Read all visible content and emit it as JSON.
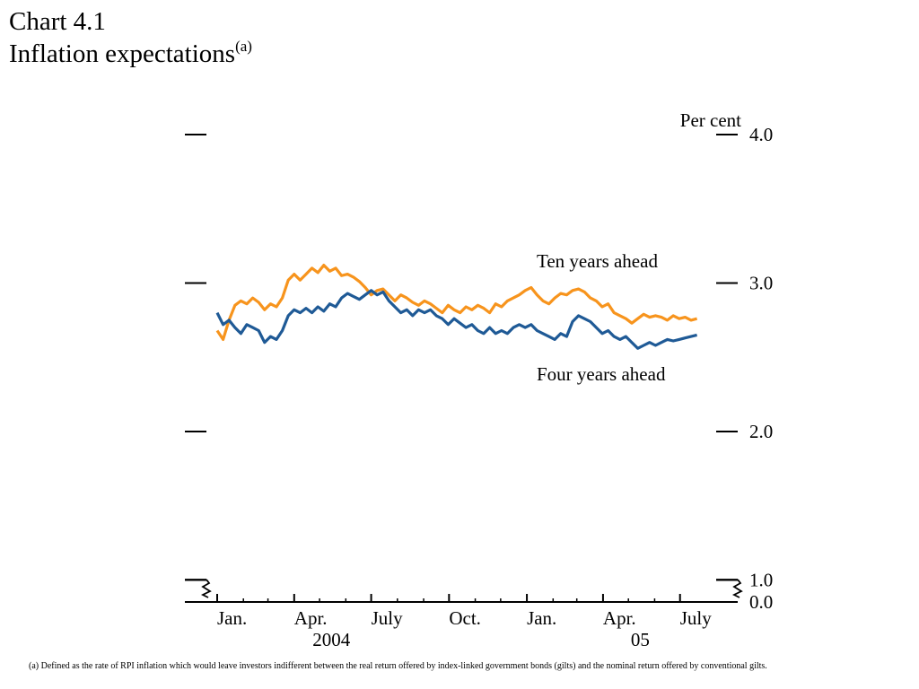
{
  "header": {
    "chart_number": "Chart 4.1",
    "title": "Inflation expectations",
    "title_footnote_mark": "(a)"
  },
  "footnote": {
    "text": "(a)  Defined as the rate of RPI inflation which would leave investors indifferent between the real return offered by index-linked government bonds (gilts) and the nominal return offered by conventional gilts."
  },
  "chart_data": {
    "type": "line",
    "title": "Inflation expectations",
    "ylabel": "Per cent",
    "y_axis": {
      "side": "right",
      "ticks": [
        4.0,
        3.0,
        2.0,
        1.0,
        0.0
      ],
      "tick_labels": [
        "4.0",
        "3.0",
        "2.0",
        "1.0",
        "0.0"
      ],
      "ylim": [
        0.0,
        4.0
      ],
      "broken_between": [
        0.0,
        1.0
      ]
    },
    "x_axis": {
      "range": [
        "2004-01-01",
        "2005-07-31"
      ],
      "ticks": [
        "2004-01-01",
        "2004-04-01",
        "2004-07-01",
        "2004-10-01",
        "2005-01-01",
        "2005-04-01",
        "2005-07-01"
      ],
      "tick_labels": [
        "Jan.",
        "Apr.",
        "July",
        "Oct.",
        "Jan.",
        "Apr.",
        "July"
      ],
      "year_labels": [
        {
          "label": "2004",
          "date": "2004-05-15"
        },
        {
          "label": "05",
          "date": "2005-05-15"
        }
      ]
    },
    "grid": false,
    "series": [
      {
        "name": "Ten years ahead",
        "label_near": "2005-03-15",
        "color": "#F7941D",
        "points": [
          [
            "2004-01-01",
            2.68
          ],
          [
            "2004-01-08",
            2.62
          ],
          [
            "2004-01-15",
            2.75
          ],
          [
            "2004-01-22",
            2.85
          ],
          [
            "2004-01-29",
            2.88
          ],
          [
            "2004-02-05",
            2.86
          ],
          [
            "2004-02-12",
            2.9
          ],
          [
            "2004-02-19",
            2.87
          ],
          [
            "2004-02-26",
            2.82
          ],
          [
            "2004-03-04",
            2.86
          ],
          [
            "2004-03-11",
            2.84
          ],
          [
            "2004-03-18",
            2.9
          ],
          [
            "2004-03-25",
            3.02
          ],
          [
            "2004-04-01",
            3.06
          ],
          [
            "2004-04-08",
            3.02
          ],
          [
            "2004-04-15",
            3.06
          ],
          [
            "2004-04-22",
            3.1
          ],
          [
            "2004-04-29",
            3.07
          ],
          [
            "2004-05-06",
            3.12
          ],
          [
            "2004-05-13",
            3.08
          ],
          [
            "2004-05-20",
            3.1
          ],
          [
            "2004-05-27",
            3.05
          ],
          [
            "2004-06-03",
            3.06
          ],
          [
            "2004-06-10",
            3.04
          ],
          [
            "2004-06-17",
            3.01
          ],
          [
            "2004-06-24",
            2.97
          ],
          [
            "2004-07-01",
            2.92
          ],
          [
            "2004-07-08",
            2.95
          ],
          [
            "2004-07-15",
            2.96
          ],
          [
            "2004-07-22",
            2.92
          ],
          [
            "2004-07-29",
            2.88
          ],
          [
            "2004-08-05",
            2.92
          ],
          [
            "2004-08-12",
            2.9
          ],
          [
            "2004-08-19",
            2.87
          ],
          [
            "2004-08-26",
            2.85
          ],
          [
            "2004-09-02",
            2.88
          ],
          [
            "2004-09-09",
            2.86
          ],
          [
            "2004-09-16",
            2.83
          ],
          [
            "2004-09-23",
            2.8
          ],
          [
            "2004-09-30",
            2.85
          ],
          [
            "2004-10-07",
            2.82
          ],
          [
            "2004-10-14",
            2.8
          ],
          [
            "2004-10-21",
            2.84
          ],
          [
            "2004-10-28",
            2.82
          ],
          [
            "2004-11-04",
            2.85
          ],
          [
            "2004-11-11",
            2.83
          ],
          [
            "2004-11-18",
            2.8
          ],
          [
            "2004-11-25",
            2.86
          ],
          [
            "2004-12-02",
            2.84
          ],
          [
            "2004-12-09",
            2.88
          ],
          [
            "2004-12-16",
            2.9
          ],
          [
            "2004-12-23",
            2.92
          ],
          [
            "2004-12-30",
            2.95
          ],
          [
            "2005-01-06",
            2.97
          ],
          [
            "2005-01-13",
            2.92
          ],
          [
            "2005-01-20",
            2.88
          ],
          [
            "2005-01-27",
            2.86
          ],
          [
            "2005-02-03",
            2.9
          ],
          [
            "2005-02-10",
            2.93
          ],
          [
            "2005-02-17",
            2.92
          ],
          [
            "2005-02-24",
            2.95
          ],
          [
            "2005-03-03",
            2.96
          ],
          [
            "2005-03-10",
            2.94
          ],
          [
            "2005-03-17",
            2.9
          ],
          [
            "2005-03-24",
            2.88
          ],
          [
            "2005-03-31",
            2.84
          ],
          [
            "2005-04-07",
            2.86
          ],
          [
            "2005-04-14",
            2.8
          ],
          [
            "2005-04-21",
            2.78
          ],
          [
            "2005-04-28",
            2.76
          ],
          [
            "2005-05-05",
            2.73
          ],
          [
            "2005-05-12",
            2.76
          ],
          [
            "2005-05-19",
            2.79
          ],
          [
            "2005-05-26",
            2.77
          ],
          [
            "2005-06-02",
            2.78
          ],
          [
            "2005-06-09",
            2.77
          ],
          [
            "2005-06-16",
            2.75
          ],
          [
            "2005-06-23",
            2.78
          ],
          [
            "2005-06-30",
            2.76
          ],
          [
            "2005-07-07",
            2.77
          ],
          [
            "2005-07-14",
            2.75
          ],
          [
            "2005-07-21",
            2.76
          ]
        ]
      },
      {
        "name": "Four years ahead",
        "label_near": "2005-03-15",
        "color": "#1F5A96",
        "points": [
          [
            "2004-01-01",
            2.8
          ],
          [
            "2004-01-08",
            2.72
          ],
          [
            "2004-01-15",
            2.75
          ],
          [
            "2004-01-22",
            2.7
          ],
          [
            "2004-01-29",
            2.66
          ],
          [
            "2004-02-05",
            2.72
          ],
          [
            "2004-02-12",
            2.7
          ],
          [
            "2004-02-19",
            2.68
          ],
          [
            "2004-02-26",
            2.6
          ],
          [
            "2004-03-04",
            2.64
          ],
          [
            "2004-03-11",
            2.62
          ],
          [
            "2004-03-18",
            2.68
          ],
          [
            "2004-03-25",
            2.78
          ],
          [
            "2004-04-01",
            2.82
          ],
          [
            "2004-04-08",
            2.8
          ],
          [
            "2004-04-15",
            2.83
          ],
          [
            "2004-04-22",
            2.8
          ],
          [
            "2004-04-29",
            2.84
          ],
          [
            "2004-05-06",
            2.81
          ],
          [
            "2004-05-13",
            2.86
          ],
          [
            "2004-05-20",
            2.84
          ],
          [
            "2004-05-27",
            2.9
          ],
          [
            "2004-06-03",
            2.93
          ],
          [
            "2004-06-10",
            2.91
          ],
          [
            "2004-06-17",
            2.89
          ],
          [
            "2004-06-24",
            2.92
          ],
          [
            "2004-07-01",
            2.95
          ],
          [
            "2004-07-08",
            2.92
          ],
          [
            "2004-07-15",
            2.94
          ],
          [
            "2004-07-22",
            2.88
          ],
          [
            "2004-07-29",
            2.84
          ],
          [
            "2004-08-05",
            2.8
          ],
          [
            "2004-08-12",
            2.82
          ],
          [
            "2004-08-19",
            2.78
          ],
          [
            "2004-08-26",
            2.82
          ],
          [
            "2004-09-02",
            2.8
          ],
          [
            "2004-09-09",
            2.82
          ],
          [
            "2004-09-16",
            2.78
          ],
          [
            "2004-09-23",
            2.76
          ],
          [
            "2004-09-30",
            2.72
          ],
          [
            "2004-10-07",
            2.76
          ],
          [
            "2004-10-14",
            2.73
          ],
          [
            "2004-10-21",
            2.7
          ],
          [
            "2004-10-28",
            2.72
          ],
          [
            "2004-11-04",
            2.68
          ],
          [
            "2004-11-11",
            2.66
          ],
          [
            "2004-11-18",
            2.7
          ],
          [
            "2004-11-25",
            2.66
          ],
          [
            "2004-12-02",
            2.68
          ],
          [
            "2004-12-09",
            2.66
          ],
          [
            "2004-12-16",
            2.7
          ],
          [
            "2004-12-23",
            2.72
          ],
          [
            "2004-12-30",
            2.7
          ],
          [
            "2005-01-06",
            2.72
          ],
          [
            "2005-01-13",
            2.68
          ],
          [
            "2005-01-20",
            2.66
          ],
          [
            "2005-01-27",
            2.64
          ],
          [
            "2005-02-03",
            2.62
          ],
          [
            "2005-02-10",
            2.66
          ],
          [
            "2005-02-17",
            2.64
          ],
          [
            "2005-02-24",
            2.74
          ],
          [
            "2005-03-03",
            2.78
          ],
          [
            "2005-03-10",
            2.76
          ],
          [
            "2005-03-17",
            2.74
          ],
          [
            "2005-03-24",
            2.7
          ],
          [
            "2005-03-31",
            2.66
          ],
          [
            "2005-04-07",
            2.68
          ],
          [
            "2005-04-14",
            2.64
          ],
          [
            "2005-04-21",
            2.62
          ],
          [
            "2005-04-28",
            2.64
          ],
          [
            "2005-05-05",
            2.6
          ],
          [
            "2005-05-12",
            2.56
          ],
          [
            "2005-05-19",
            2.58
          ],
          [
            "2005-05-26",
            2.6
          ],
          [
            "2005-06-02",
            2.58
          ],
          [
            "2005-06-09",
            2.6
          ],
          [
            "2005-06-16",
            2.62
          ],
          [
            "2005-06-23",
            2.61
          ],
          [
            "2005-06-30",
            2.62
          ],
          [
            "2005-07-07",
            2.63
          ],
          [
            "2005-07-14",
            2.64
          ],
          [
            "2005-07-21",
            2.65
          ]
        ]
      }
    ]
  }
}
